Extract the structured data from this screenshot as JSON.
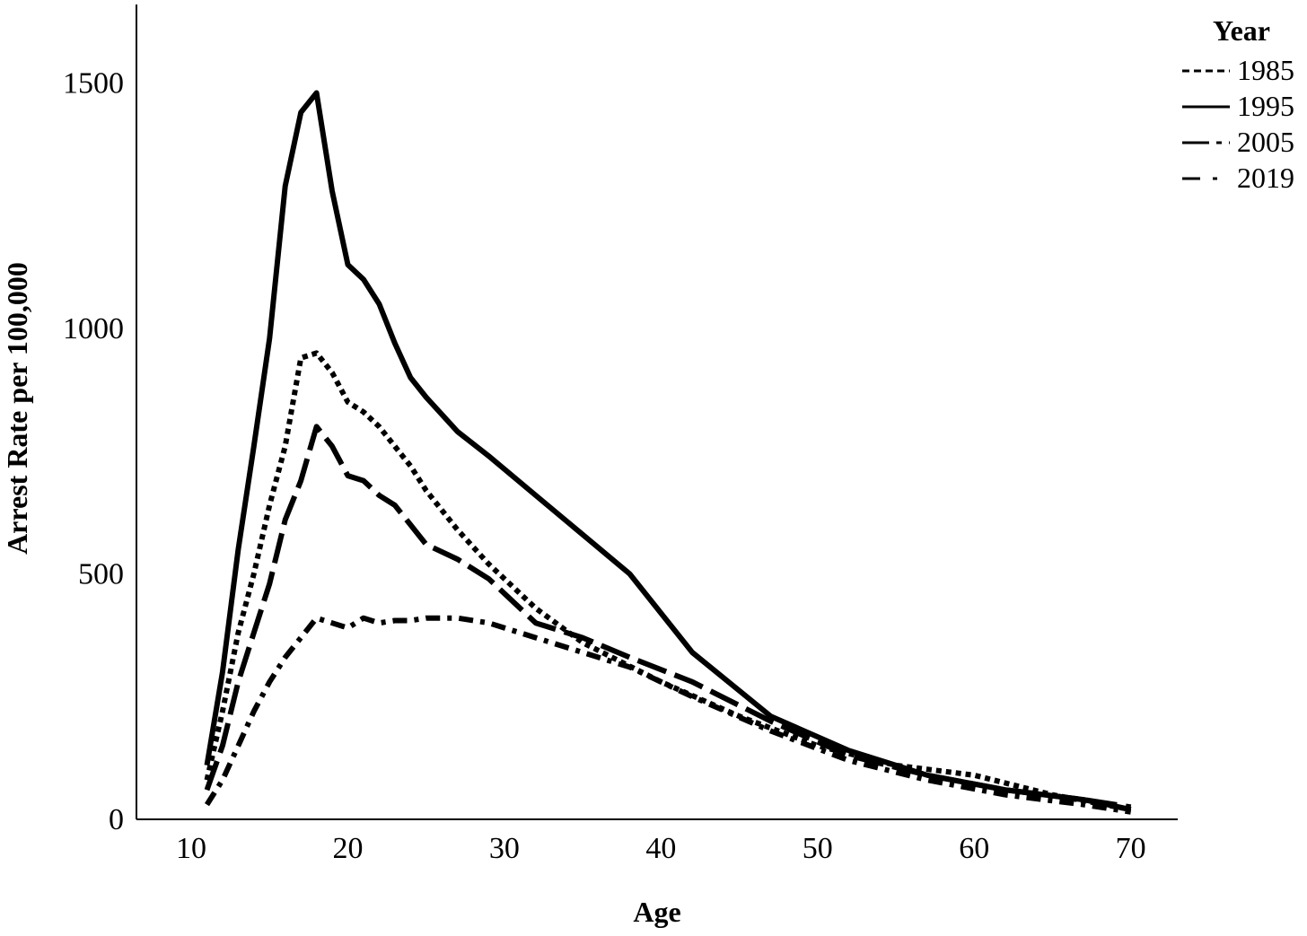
{
  "chart_data": {
    "type": "line",
    "xlabel": "Age",
    "ylabel": "Arrest Rate per 100,000",
    "xlim": [
      6.5,
      73
    ],
    "ylim": [
      0,
      1660
    ],
    "xticks": [
      10,
      20,
      30,
      40,
      50,
      60,
      70
    ],
    "yticks": [
      0,
      500,
      1000,
      1500
    ],
    "grid": false,
    "legend": {
      "title": "Year",
      "position": "top-right"
    },
    "series": [
      {
        "name": "1985",
        "style": "dotted",
        "color": "#000000",
        "x": [
          11,
          12,
          13,
          14,
          15,
          16,
          17,
          18,
          19,
          20,
          21,
          22,
          23,
          24,
          25,
          27,
          29,
          32,
          35,
          40,
          45,
          50,
          55,
          60,
          65,
          70
        ],
        "y": [
          80,
          220,
          380,
          500,
          640,
          760,
          940,
          950,
          910,
          850,
          830,
          800,
          760,
          720,
          670,
          590,
          520,
          430,
          360,
          280,
          210,
          150,
          110,
          90,
          50,
          20
        ]
      },
      {
        "name": "1995",
        "style": "solid",
        "color": "#000000",
        "x": [
          11,
          12,
          13,
          14,
          15,
          16,
          17,
          18,
          19,
          20,
          21,
          22,
          23,
          24,
          25,
          27,
          29,
          32,
          35,
          38,
          42,
          47,
          52,
          57,
          62,
          67,
          70
        ],
        "y": [
          110,
          300,
          550,
          760,
          980,
          1290,
          1440,
          1480,
          1280,
          1130,
          1100,
          1050,
          970,
          900,
          860,
          790,
          740,
          660,
          580,
          500,
          340,
          210,
          140,
          90,
          60,
          40,
          20
        ]
      },
      {
        "name": "2005",
        "style": "long-dash",
        "color": "#000000",
        "x": [
          11,
          12,
          13,
          14,
          15,
          16,
          17,
          18,
          19,
          20,
          21,
          22,
          23,
          24,
          25,
          27,
          29,
          32,
          35,
          38,
          42,
          47,
          52,
          57,
          62,
          67,
          70
        ],
        "y": [
          60,
          150,
          280,
          380,
          480,
          610,
          690,
          800,
          760,
          700,
          690,
          660,
          640,
          600,
          560,
          530,
          490,
          400,
          370,
          330,
          280,
          200,
          130,
          90,
          60,
          40,
          25
        ]
      },
      {
        "name": "2019",
        "style": "dash-dot",
        "color": "#000000",
        "x": [
          11,
          12,
          13,
          14,
          15,
          16,
          17,
          18,
          19,
          20,
          21,
          22,
          23,
          24,
          25,
          27,
          29,
          32,
          35,
          38,
          42,
          47,
          52,
          57,
          62,
          67,
          70
        ],
        "y": [
          30,
          80,
          150,
          220,
          280,
          330,
          370,
          410,
          400,
          390,
          410,
          400,
          405,
          405,
          410,
          410,
          400,
          370,
          340,
          310,
          250,
          180,
          120,
          80,
          50,
          30,
          15
        ]
      }
    ]
  }
}
